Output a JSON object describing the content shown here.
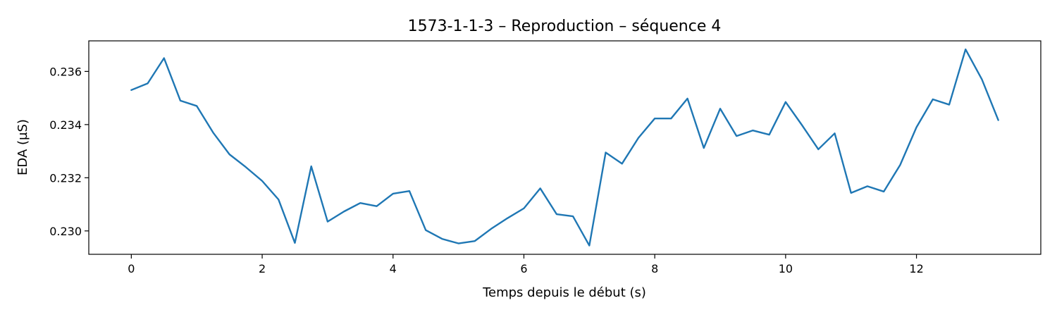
{
  "chart_data": {
    "type": "line",
    "title": "1573-1-1-3 – Reproduction – séquence 4",
    "xlabel": "Temps depuis le début (s)",
    "ylabel": "EDA (µS)",
    "xlim": [
      -0.65,
      13.9
    ],
    "ylim": [
      0.22912,
      0.23715
    ],
    "xticks": [
      0,
      2,
      4,
      6,
      8,
      10,
      12
    ],
    "xtick_labels": [
      "0",
      "2",
      "4",
      "6",
      "8",
      "10",
      "12"
    ],
    "yticks": [
      0.23,
      0.232,
      0.234,
      0.236
    ],
    "ytick_labels": [
      "0.230",
      "0.232",
      "0.234",
      "0.236"
    ],
    "grid": false,
    "series": [
      {
        "color": "#1f77b4",
        "x": [
          0,
          0.25,
          0.5,
          0.75,
          1.0,
          1.25,
          1.5,
          1.75,
          2.0,
          2.25,
          2.5,
          2.75,
          3.0,
          3.25,
          3.5,
          3.75,
          4.0,
          4.25,
          4.5,
          4.75,
          5.0,
          5.25,
          5.5,
          5.75,
          6.0,
          6.25,
          6.5,
          6.75,
          7.0,
          7.25,
          7.5,
          7.75,
          8.0,
          8.25,
          8.5,
          8.75,
          9.0,
          9.25,
          9.5,
          9.75,
          10.0,
          10.25,
          10.5,
          10.75,
          11.0,
          11.25,
          11.5,
          11.75,
          12.0,
          12.25,
          12.5,
          12.75,
          13.0,
          13.25
        ],
        "y": [
          0.2353,
          0.23555,
          0.2365,
          0.2349,
          0.2347,
          0.2337,
          0.23288,
          0.2324,
          0.23188,
          0.23118,
          0.22955,
          0.23243,
          0.23035,
          0.23073,
          0.23105,
          0.23093,
          0.2314,
          0.2315,
          0.23003,
          0.2297,
          0.22953,
          0.22962,
          0.23008,
          0.23048,
          0.23085,
          0.2316,
          0.23063,
          0.23055,
          0.22945,
          0.23295,
          0.23253,
          0.2335,
          0.23423,
          0.23423,
          0.23498,
          0.23312,
          0.2346,
          0.23357,
          0.23378,
          0.23362,
          0.23485,
          0.23398,
          0.23307,
          0.23367,
          0.23143,
          0.23168,
          0.23148,
          0.23248,
          0.2339,
          0.23495,
          0.23475,
          0.23683,
          0.2357,
          0.23417
        ]
      }
    ]
  }
}
